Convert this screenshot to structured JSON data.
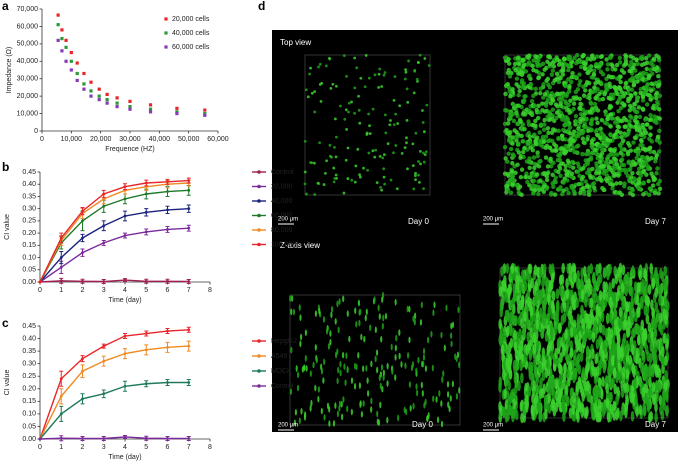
{
  "chart_data": [
    {
      "type": "scatter",
      "label": "a",
      "xlabel": "Frequence (HZ)",
      "ylabel": "Impedance (Ω)",
      "xlim": [
        0,
        60000
      ],
      "xticks": [
        0,
        {
          "value": 10000,
          "label": "10,000"
        },
        {
          "value": 20000,
          "label": "20,000"
        },
        {
          "value": 30000,
          "label": "30,000"
        },
        {
          "value": 40000,
          "label": "40,000"
        },
        {
          "value": 50000,
          "label": "50,000"
        },
        {
          "value": 60000,
          "label": "60,000"
        }
      ],
      "ylim": [
        0,
        70000
      ],
      "yticks": [
        0,
        {
          "value": 10000,
          "label": "10,000"
        },
        {
          "value": 20000,
          "label": "20,000"
        },
        {
          "value": 30000,
          "label": "30,000"
        },
        {
          "value": 40000,
          "label": "40,000"
        },
        {
          "value": 50000,
          "label": "50,000"
        },
        {
          "value": 60000,
          "label": "60,000"
        },
        {
          "value": 70000,
          "label": "70,000"
        }
      ],
      "x": [
        5500,
        6800,
        8200,
        10000,
        12000,
        14300,
        16700,
        19500,
        22200,
        25600,
        30000,
        37000,
        46000,
        55500
      ],
      "series": [
        {
          "name": "20,000 cells",
          "color": "#e8262a",
          "values": [
            66500,
            58000,
            52000,
            45000,
            39000,
            33000,
            28000,
            24000,
            21000,
            19000,
            17000,
            15000,
            13000,
            12000
          ]
        },
        {
          "name": "40,000 cells",
          "color": "#2a9a3a",
          "values": [
            61000,
            53000,
            48000,
            40000,
            33000,
            27000,
            23000,
            20000,
            18000,
            16000,
            14000,
            12500,
            11000,
            10000
          ]
        },
        {
          "name": "60,000 cells",
          "color": "#8a3ab9",
          "values": [
            52000,
            46000,
            40000,
            35000,
            29000,
            24000,
            20000,
            18000,
            16000,
            14000,
            12500,
            11000,
            10000,
            9000
          ]
        }
      ]
    },
    {
      "type": "line",
      "label": "b",
      "xlabel": "Time (day)",
      "ylabel": "CI value",
      "xlim": [
        0,
        8
      ],
      "xticks": [
        0,
        1,
        2,
        3,
        4,
        5,
        6,
        7,
        8
      ],
      "ylim": [
        0,
        0.45
      ],
      "yticks": [
        {
          "value": 0,
          "label": "0.00"
        },
        {
          "value": 0.05,
          "label": "0.05"
        },
        {
          "value": 0.1,
          "label": "0.10"
        },
        {
          "value": 0.15,
          "label": "0.15"
        },
        {
          "value": 0.2,
          "label": "0.20"
        },
        {
          "value": 0.25,
          "label": "0.25"
        },
        {
          "value": 0.3,
          "label": "0.30"
        },
        {
          "value": 0.35,
          "label": "0.35"
        },
        {
          "value": 0.4,
          "label": "0.40"
        },
        {
          "value": 0.45,
          "label": "0.45"
        }
      ],
      "x": [
        0,
        1,
        2,
        3,
        4,
        5,
        6,
        7
      ],
      "series": [
        {
          "name": "Control",
          "color": "#a01e50",
          "values": [
            0,
            0.005,
            0.003,
            0.002,
            0.008,
            0.003,
            0.003,
            0.002
          ],
          "errors": [
            0,
            0.01,
            0.008,
            0.008,
            0.006,
            0.008,
            0.008,
            0.008
          ]
        },
        {
          "name": "20,000",
          "color": "#7b2a9a",
          "values": [
            0,
            0.06,
            0.12,
            0.16,
            0.19,
            0.205,
            0.215,
            0.22
          ],
          "errors": [
            0,
            0.025,
            0.015,
            0.01,
            0.01,
            0.012,
            0.012,
            0.012
          ]
        },
        {
          "name": "40,000",
          "color": "#1a237e",
          "values": [
            0,
            0.1,
            0.18,
            0.23,
            0.27,
            0.285,
            0.295,
            0.3
          ],
          "errors": [
            0,
            0.025,
            0.015,
            0.02,
            0.02,
            0.015,
            0.015,
            0.015
          ]
        },
        {
          "name": "60,000",
          "color": "#1e7a2a",
          "values": [
            0,
            0.16,
            0.25,
            0.31,
            0.34,
            0.36,
            0.37,
            0.375
          ],
          "errors": [
            0,
            0.025,
            0.04,
            0.025,
            0.02,
            0.02,
            0.02,
            0.02
          ]
        },
        {
          "name": "80,000",
          "color": "#f08a24",
          "values": [
            0,
            0.17,
            0.28,
            0.34,
            0.375,
            0.39,
            0.4,
            0.405
          ],
          "errors": [
            0,
            0.02,
            0.02,
            0.02,
            0.015,
            0.015,
            0.015,
            0.012
          ]
        },
        {
          "name": "100,000",
          "color": "#e8262a",
          "values": [
            0,
            0.18,
            0.29,
            0.36,
            0.39,
            0.405,
            0.41,
            0.415
          ],
          "errors": [
            0,
            0.02,
            0.015,
            0.015,
            0.012,
            0.012,
            0.01,
            0.01
          ]
        }
      ]
    },
    {
      "type": "line",
      "label": "c",
      "xlabel": "Time (day)",
      "ylabel": "CI value",
      "xlim": [
        0,
        8
      ],
      "xticks": [
        0,
        1,
        2,
        3,
        4,
        5,
        6,
        7,
        8
      ],
      "ylim": [
        0,
        0.45
      ],
      "yticks": [
        {
          "value": 0,
          "label": "0.00"
        },
        {
          "value": 0.05,
          "label": "0.05"
        },
        {
          "value": 0.1,
          "label": "0.10"
        },
        {
          "value": 0.15,
          "label": "0.15"
        },
        {
          "value": 0.2,
          "label": "0.20"
        },
        {
          "value": 0.25,
          "label": "0.25"
        },
        {
          "value": 0.3,
          "label": "0.30"
        },
        {
          "value": 0.35,
          "label": "0.35"
        },
        {
          "value": 0.4,
          "label": "0.40"
        },
        {
          "value": 0.45,
          "label": "0.45"
        }
      ],
      "x": [
        0,
        1,
        2,
        3,
        4,
        5,
        6,
        7
      ],
      "series": [
        {
          "name": "HepgG2",
          "color": "#e8262a",
          "values": [
            0,
            0.24,
            0.32,
            0.37,
            0.41,
            0.42,
            0.43,
            0.435
          ],
          "errors": [
            0,
            0.03,
            0.012,
            0.008,
            0.01,
            0.01,
            0.01,
            0.01
          ]
        },
        {
          "name": "A549",
          "color": "#f08a24",
          "values": [
            0,
            0.17,
            0.27,
            0.31,
            0.34,
            0.355,
            0.365,
            0.37
          ],
          "errors": [
            0,
            0.03,
            0.025,
            0.02,
            0.02,
            0.02,
            0.02,
            0.02
          ]
        },
        {
          "name": "MDCK",
          "color": "#1e7a5a",
          "values": [
            0,
            0.1,
            0.16,
            0.18,
            0.21,
            0.22,
            0.225,
            0.225
          ],
          "errors": [
            0,
            0.03,
            0.02,
            0.015,
            0.02,
            0.012,
            0.012,
            0.012
          ]
        },
        {
          "name": "Control",
          "color": "#7b2a9a",
          "values": [
            0,
            0.003,
            0.002,
            0.002,
            0.008,
            0.003,
            0.002,
            0.002
          ],
          "errors": [
            0,
            0.01,
            0.008,
            0.008,
            0.006,
            0.008,
            0.008,
            0.008
          ]
        }
      ]
    }
  ],
  "image_panel": {
    "label": "d",
    "top_title": "Top view",
    "bottom_title": "Z-axis view",
    "images": [
      {
        "day": "Day 0",
        "scale": "200 μm"
      },
      {
        "day": "Day 7",
        "scale": "200 μm"
      },
      {
        "day": "Day 0",
        "scale": "200 μm"
      },
      {
        "day": "Day 7",
        "scale": "200 μm"
      }
    ]
  }
}
